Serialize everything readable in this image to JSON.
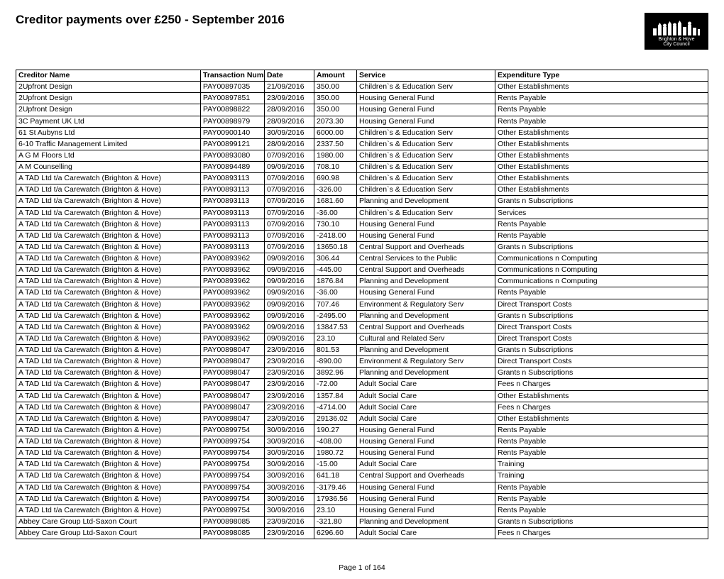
{
  "title": "Creditor payments over £250 - September 2016",
  "logo": {
    "line1": "Brighton & Hove",
    "line2": "City Council"
  },
  "footer": "Page 1 of 164",
  "table": {
    "columns": [
      "Creditor Name",
      "Transaction Number",
      "Date",
      "Amount",
      "Service",
      "Expenditure Type"
    ],
    "rows": [
      [
        "2Upfront Design",
        "PAY00897035",
        "21/09/2016",
        "350.00",
        "Children`s & Education Serv",
        "Other Establishments"
      ],
      [
        "2Upfront Design",
        "PAY00897851",
        "23/09/2016",
        "350.00",
        "Housing General Fund",
        "Rents Payable"
      ],
      [
        "2Upfront Design",
        "PAY00898822",
        "28/09/2016",
        "350.00",
        "Housing General Fund",
        "Rents Payable"
      ],
      [
        "3C Payment UK Ltd",
        "PAY00898979",
        "28/09/2016",
        "2073.30",
        "Housing General Fund",
        "Rents Payable"
      ],
      [
        "61 St Aubyns Ltd",
        "PAY00900140",
        "30/09/2016",
        "6000.00",
        "Children`s & Education Serv",
        "Other Establishments"
      ],
      [
        "6-10 Traffic Management Limited",
        "PAY00899121",
        "28/09/2016",
        "2337.50",
        "Children`s & Education Serv",
        "Other Establishments"
      ],
      [
        "A G M Floors Ltd",
        "PAY00893080",
        "07/09/2016",
        "1980.00",
        "Children`s & Education Serv",
        "Other Establishments"
      ],
      [
        "A M Counselling",
        "PAY00894489",
        "09/09/2016",
        "708.10",
        "Children`s & Education Serv",
        "Other Establishments"
      ],
      [
        "A TAD Ltd t/a Carewatch (Brighton & Hove)",
        "PAY00893113",
        "07/09/2016",
        "690.98",
        "Children`s & Education Serv",
        "Other Establishments"
      ],
      [
        "A TAD Ltd t/a Carewatch (Brighton & Hove)",
        "PAY00893113",
        "07/09/2016",
        "-326.00",
        "Children`s & Education Serv",
        "Other Establishments"
      ],
      [
        "A TAD Ltd t/a Carewatch (Brighton & Hove)",
        "PAY00893113",
        "07/09/2016",
        "1681.60",
        "Planning and Development",
        "Grants n Subscriptions"
      ],
      [
        "A TAD Ltd t/a Carewatch (Brighton & Hove)",
        "PAY00893113",
        "07/09/2016",
        "-36.00",
        "Children`s & Education Serv",
        "Services"
      ],
      [
        "A TAD Ltd t/a Carewatch (Brighton & Hove)",
        "PAY00893113",
        "07/09/2016",
        "730.10",
        "Housing General Fund",
        "Rents Payable"
      ],
      [
        "A TAD Ltd t/a Carewatch (Brighton & Hove)",
        "PAY00893113",
        "07/09/2016",
        "-2418.00",
        "Housing General Fund",
        "Rents Payable"
      ],
      [
        "A TAD Ltd t/a Carewatch (Brighton & Hove)",
        "PAY00893113",
        "07/09/2016",
        "13650.18",
        "Central Support and Overheads",
        "Grants n Subscriptions"
      ],
      [
        "A TAD Ltd t/a Carewatch (Brighton & Hove)",
        "PAY00893962",
        "09/09/2016",
        "306.44",
        "Central Services to the Public",
        "Communications n Computing"
      ],
      [
        "A TAD Ltd t/a Carewatch (Brighton & Hove)",
        "PAY00893962",
        "09/09/2016",
        "-445.00",
        "Central Support and Overheads",
        "Communications n Computing"
      ],
      [
        "A TAD Ltd t/a Carewatch (Brighton & Hove)",
        "PAY00893962",
        "09/09/2016",
        "1876.84",
        "Planning and Development",
        "Communications n Computing"
      ],
      [
        "A TAD Ltd t/a Carewatch (Brighton & Hove)",
        "PAY00893962",
        "09/09/2016",
        "-36.00",
        "Housing General Fund",
        "Rents Payable"
      ],
      [
        "A TAD Ltd t/a Carewatch (Brighton & Hove)",
        "PAY00893962",
        "09/09/2016",
        "707.46",
        "Environment & Regulatory Serv",
        "Direct Transport Costs"
      ],
      [
        "A TAD Ltd t/a Carewatch (Brighton & Hove)",
        "PAY00893962",
        "09/09/2016",
        "-2495.00",
        "Planning and Development",
        "Grants n Subscriptions"
      ],
      [
        "A TAD Ltd t/a Carewatch (Brighton & Hove)",
        "PAY00893962",
        "09/09/2016",
        "13847.53",
        "Central Support and Overheads",
        "Direct Transport Costs"
      ],
      [
        "A TAD Ltd t/a Carewatch (Brighton & Hove)",
        "PAY00893962",
        "09/09/2016",
        "23.10",
        "Cultural and Related Serv",
        "Direct Transport Costs"
      ],
      [
        "A TAD Ltd t/a Carewatch (Brighton & Hove)",
        "PAY00898047",
        "23/09/2016",
        "801.53",
        "Planning and Development",
        "Grants n Subscriptions"
      ],
      [
        "A TAD Ltd t/a Carewatch (Brighton & Hove)",
        "PAY00898047",
        "23/09/2016",
        "-890.00",
        "Environment & Regulatory Serv",
        "Direct Transport Costs"
      ],
      [
        "A TAD Ltd t/a Carewatch (Brighton & Hove)",
        "PAY00898047",
        "23/09/2016",
        "3892.96",
        "Planning and Development",
        "Grants n Subscriptions"
      ],
      [
        "A TAD Ltd t/a Carewatch (Brighton & Hove)",
        "PAY00898047",
        "23/09/2016",
        "-72.00",
        "Adult Social Care",
        "Fees n Charges"
      ],
      [
        "A TAD Ltd t/a Carewatch (Brighton & Hove)",
        "PAY00898047",
        "23/09/2016",
        "1357.84",
        "Adult Social Care",
        "Other Establishments"
      ],
      [
        "A TAD Ltd t/a Carewatch (Brighton & Hove)",
        "PAY00898047",
        "23/09/2016",
        "-4714.00",
        "Adult Social Care",
        "Fees n Charges"
      ],
      [
        "A TAD Ltd t/a Carewatch (Brighton & Hove)",
        "PAY00898047",
        "23/09/2016",
        "29136.02",
        "Adult Social Care",
        "Other Establishments"
      ],
      [
        "A TAD Ltd t/a Carewatch (Brighton & Hove)",
        "PAY00899754",
        "30/09/2016",
        "190.27",
        "Housing General Fund",
        "Rents Payable"
      ],
      [
        "A TAD Ltd t/a Carewatch (Brighton & Hove)",
        "PAY00899754",
        "30/09/2016",
        "-408.00",
        "Housing General Fund",
        "Rents Payable"
      ],
      [
        "A TAD Ltd t/a Carewatch (Brighton & Hove)",
        "PAY00899754",
        "30/09/2016",
        "1980.72",
        "Housing General Fund",
        "Rents Payable"
      ],
      [
        "A TAD Ltd t/a Carewatch (Brighton & Hove)",
        "PAY00899754",
        "30/09/2016",
        "-15.00",
        "Adult Social Care",
        "Training"
      ],
      [
        "A TAD Ltd t/a Carewatch (Brighton & Hove)",
        "PAY00899754",
        "30/09/2016",
        "641.18",
        "Central Support and Overheads",
        "Training"
      ],
      [
        "A TAD Ltd t/a Carewatch (Brighton & Hove)",
        "PAY00899754",
        "30/09/2016",
        "-3179.46",
        "Housing General Fund",
        "Rents Payable"
      ],
      [
        "A TAD Ltd t/a Carewatch (Brighton & Hove)",
        "PAY00899754",
        "30/09/2016",
        "17936.56",
        "Housing General Fund",
        "Rents Payable"
      ],
      [
        "A TAD Ltd t/a Carewatch (Brighton & Hove)",
        "PAY00899754",
        "30/09/2016",
        "23.10",
        "Housing General Fund",
        "Rents Payable"
      ],
      [
        "Abbey Care Group Ltd-Saxon Court",
        "PAY00898085",
        "23/09/2016",
        "-321.80",
        "Planning and Development",
        "Grants n Subscriptions"
      ],
      [
        "Abbey Care Group Ltd-Saxon Court",
        "PAY00898085",
        "23/09/2016",
        "6296.60",
        "Adult Social Care",
        "Fees n Charges"
      ]
    ]
  }
}
